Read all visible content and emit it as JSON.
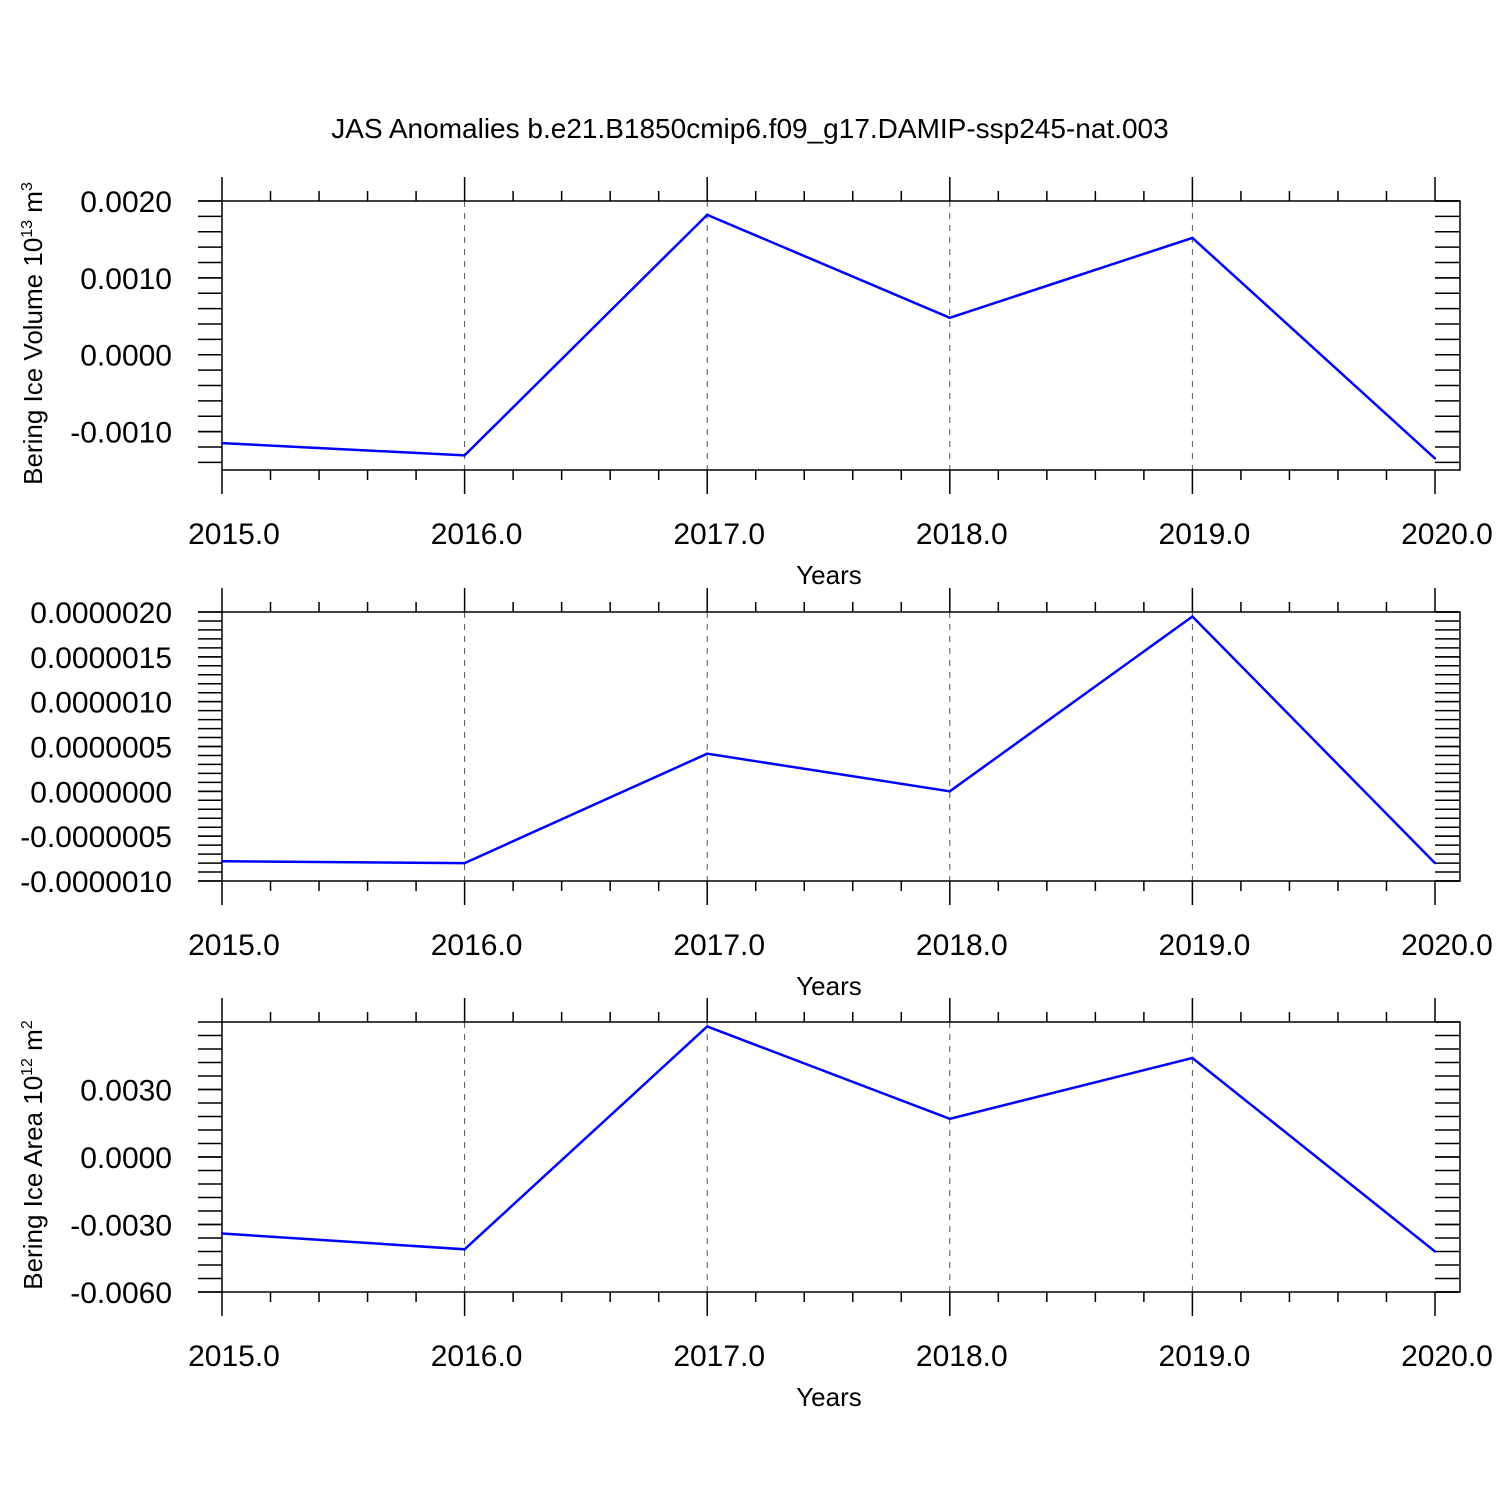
{
  "figure": {
    "title": "JAS Anomalies b.e21.B1850cmip6.f09_g17.DAMIP-ssp245-nat.003"
  },
  "colors": {
    "series": "#0000ff",
    "axes": "#000000",
    "grid": "#555555"
  },
  "chart_data": [
    {
      "type": "line",
      "title": "JAS Anomalies b.e21.B1850cmip6.f09_g17.DAMIP-ssp245-nat.003",
      "xlabel": "Years",
      "ylabel": "Bering Ice Volume",
      "ylabel_unit": "10^13 m^3",
      "ylabel_unit_base": "10",
      "ylabel_unit_exp": "13",
      "ylabel_unit_tail": "m",
      "ylabel_unit_tail_exp": "3",
      "xlim": [
        2015,
        2020
      ],
      "ylim": [
        -0.0015,
        0.002
      ],
      "xticks": [
        2015,
        2016,
        2017,
        2018,
        2019,
        2020
      ],
      "xtick_labels": [
        "2015.0",
        "2016.0",
        "2017.0",
        "2018.0",
        "2019.0",
        "2020.0"
      ],
      "yticks": [
        -0.001,
        0.0,
        0.001,
        0.002
      ],
      "ytick_labels": [
        "-0.0010",
        "0.0000",
        "0.0010",
        "0.0020"
      ],
      "y_minor_step": 0.0002,
      "grid": "x-dashed",
      "x": [
        2015,
        2016,
        2017,
        2018,
        2019,
        2020
      ],
      "series": [
        {
          "values": [
            -0.00115,
            -0.00131,
            0.00182,
            0.00048,
            0.00152,
            -0.00135
          ]
        }
      ]
    },
    {
      "type": "line",
      "xlabel": "Years",
      "ylabel": "",
      "xlim": [
        2015,
        2020
      ],
      "ylim": [
        -1e-06,
        2e-06
      ],
      "xticks": [
        2015,
        2016,
        2017,
        2018,
        2019,
        2020
      ],
      "xtick_labels": [
        "2015.0",
        "2016.0",
        "2017.0",
        "2018.0",
        "2019.0",
        "2020.0"
      ],
      "yticks": [
        -1e-06,
        -5e-07,
        0.0,
        5e-07,
        1e-06,
        1.5e-06,
        2e-06
      ],
      "ytick_labels": [
        "-0.0000010",
        "-0.0000005",
        "0.0000000",
        "0.0000005",
        "0.0000010",
        "0.0000015",
        "0.0000020"
      ],
      "y_minor_step": 1e-07,
      "grid": "x-dashed",
      "x": [
        2015,
        2016,
        2017,
        2018,
        2019,
        2020
      ],
      "series": [
        {
          "values": [
            -7.8e-07,
            -8e-07,
            4.2e-07,
            0.0,
            1.95e-06,
            -8e-07
          ]
        }
      ]
    },
    {
      "type": "line",
      "xlabel": "Years",
      "ylabel": "Bering Ice Area",
      "ylabel_unit": "10^12 m^2",
      "ylabel_unit_base": "10",
      "ylabel_unit_exp": "12",
      "ylabel_unit_tail": "m",
      "ylabel_unit_tail_exp": "2",
      "xlim": [
        2015,
        2020
      ],
      "ylim": [
        -0.006,
        0.006
      ],
      "xticks": [
        2015,
        2016,
        2017,
        2018,
        2019,
        2020
      ],
      "xtick_labels": [
        "2015.0",
        "2016.0",
        "2017.0",
        "2018.0",
        "2019.0",
        "2020.0"
      ],
      "yticks": [
        -0.006,
        -0.003,
        0.0,
        0.003
      ],
      "ytick_labels": [
        "-0.0060",
        "-0.0030",
        "0.0000",
        "0.0030"
      ],
      "y_minor_step": 0.0006,
      "grid": "x-dashed",
      "x": [
        2015,
        2016,
        2017,
        2018,
        2019,
        2020
      ],
      "series": [
        {
          "values": [
            -0.0034,
            -0.0041,
            0.0058,
            0.0017,
            0.0044,
            -0.0042
          ]
        }
      ]
    }
  ]
}
